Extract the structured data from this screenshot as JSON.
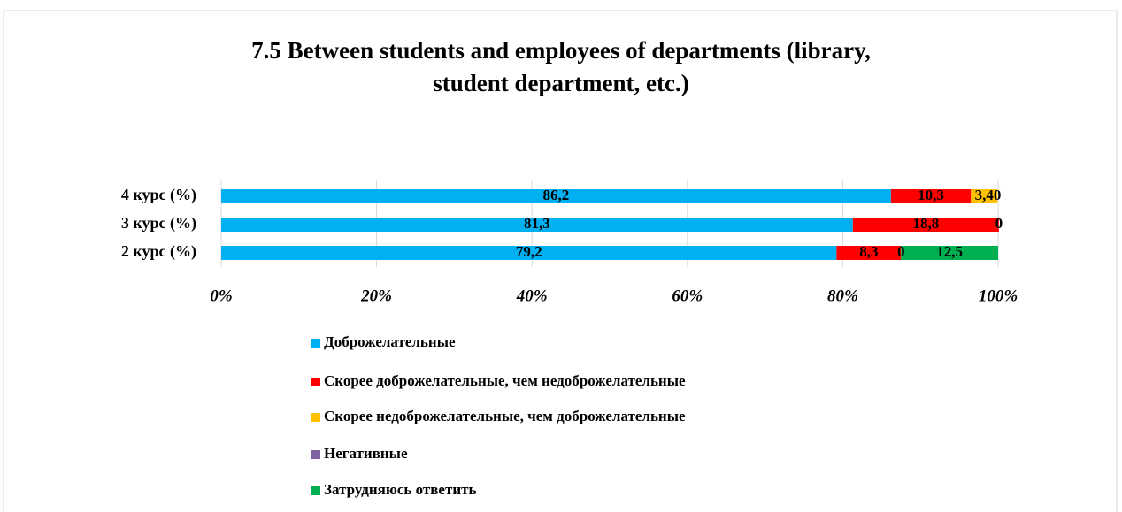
{
  "chart_data": {
    "type": "stacked-bar-horizontal",
    "title": "7.5 Between students and employees of departments (library, student department, etc.)",
    "categories": [
      "4 курс (%)",
      "3 курс (%)",
      "2 курс (%)"
    ],
    "series": [
      {
        "name": "Доброжелательные",
        "color": "#00b0f0",
        "values": [
          86.2,
          81.3,
          79.2
        ],
        "value_labels": [
          "86,2",
          "81,3",
          "79,2"
        ]
      },
      {
        "name": "Скорее доброжелательные, чем недоброжелательные",
        "color": "#ff0000",
        "values": [
          10.3,
          18.8,
          8.3
        ],
        "value_labels": [
          "10,3",
          "18,8",
          "8,3"
        ]
      },
      {
        "name": "Скорее недоброжелательные, чем доброжелательные",
        "color": "#ffc000",
        "values": [
          3.4,
          0,
          0
        ],
        "value_labels": [
          "3,4",
          "0",
          "0"
        ]
      },
      {
        "name": "Негативные",
        "color": "#8064a2",
        "values": [
          0,
          0,
          0
        ]
      },
      {
        "name": "Затрудняюсь ответить",
        "color": "#00b050",
        "values": [
          0,
          0,
          12.5
        ],
        "value_labels": [
          "0",
          "0",
          "12,5"
        ]
      }
    ],
    "xlim": [
      0,
      100
    ],
    "xticks": [
      {
        "value": 0,
        "label": "0%"
      },
      {
        "value": 20,
        "label": "20%"
      },
      {
        "value": 40,
        "label": "40%"
      },
      {
        "value": 60,
        "label": "60%"
      },
      {
        "value": 80,
        "label": "80%"
      },
      {
        "value": 100,
        "label": "100%"
      }
    ],
    "grid": true,
    "legend": "bottom"
  }
}
